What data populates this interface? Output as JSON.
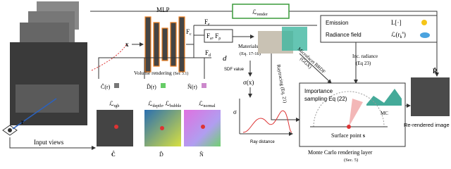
{
  "loss_render": {
    "symbol": "ℒ",
    "sub": "render"
  },
  "mlp": {
    "label": "MLP",
    "input": "x"
  },
  "features": {
    "emission": {
      "symbol": "F",
      "sub": "e"
    },
    "color": {
      "symbol": "F",
      "sub": "c"
    },
    "albedo_rough": {
      "a": "F",
      "a_sub": "a",
      "sep": ", ",
      "r": "F",
      "r_sub": "ρ"
    },
    "distance": {
      "symbol": "F",
      "sub": "d"
    },
    "sdf": {
      "symbol": "d",
      "label": "SDF value"
    }
  },
  "materials": {
    "label": "Materials",
    "eq": "(Eq. 17-18)"
  },
  "emission_box": {
    "emission": "Emission",
    "emission_sym": "L[·]",
    "radiance": "Radiance field",
    "radiance_sym": "ℒ(r",
    "radiance_sub": "k",
    "radiance_sup": "s",
    "radiance_close": ")"
  },
  "brdf": {
    "label": "Microfacet BRDF",
    "sub": "(GGX)"
  },
  "raytracing": "Raytracing (Eq. 21)",
  "inc_radiance": {
    "label": "Inc. radiance",
    "eq": "(Eq 23)"
  },
  "volume_rendering": {
    "label": "Volume rendering",
    "sec": "(Sec 3.1)"
  },
  "outputs": {
    "color": "Ĉ(r)",
    "depth": "D̂(r)",
    "normal": "N̂(r)"
  },
  "losses": {
    "rgb": {
      "symbol": "ℒ",
      "sub": "rgb"
    },
    "depth": {
      "symbol": "ℒ",
      "sub": "depth",
      "sep": ", ",
      "symbol2": "ℒ",
      "sub2": "bubble"
    },
    "normal": {
      "symbol": "ℒ",
      "sub": "normal"
    }
  },
  "maps": {
    "color": "Ĉ",
    "depth": "D̂",
    "normal": "N̂"
  },
  "density": {
    "label": "σ(x)",
    "axis": "σ",
    "x_label": "Ray distance"
  },
  "monte_carlo": {
    "importance": "Importance",
    "sampling": "sampling Eq (22)",
    "mc": "MC",
    "surface": "Surface point",
    "surface_sym": "s",
    "caption": "Monte Carlo rendering layer",
    "sec": "(Sec. 5)"
  },
  "output": {
    "symbol": "R̂",
    "label": "Re-rendered image"
  },
  "input": {
    "ray": "r",
    "label": "Input views"
  }
}
